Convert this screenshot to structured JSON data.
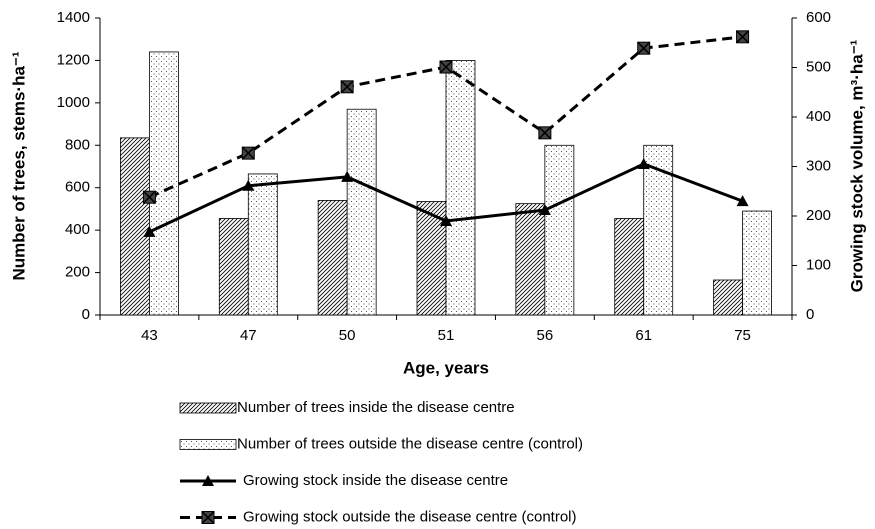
{
  "chart_data": {
    "type": "bar",
    "xlabel": "Age, years",
    "ylabel": "Number of trees, stems·ha⁻¹",
    "y2label": "Growing stock volume, m³·ha⁻¹",
    "categories": [
      "43",
      "47",
      "50",
      "51",
      "56",
      "61",
      "75"
    ],
    "ylim": [
      0,
      1400
    ],
    "yticks": [
      0,
      200,
      400,
      600,
      800,
      1000,
      1200,
      1400
    ],
    "y2lim": [
      0,
      600
    ],
    "y2ticks": [
      0,
      100,
      200,
      300,
      400,
      500,
      600
    ],
    "series": [
      {
        "name": "Number of trees inside the disease centre",
        "type": "bar",
        "pattern": "hatch",
        "color": "#000000",
        "values": [
          835,
          455,
          540,
          535,
          525,
          455,
          165
        ]
      },
      {
        "name": "Number of trees outside the disease centre (control)",
        "type": "bar",
        "pattern": "dots",
        "color": "#000000",
        "values": [
          1240,
          665,
          970,
          1200,
          800,
          800,
          490
        ]
      },
      {
        "name": "Growing stock inside the disease centre",
        "type": "line",
        "axis": "y2",
        "marker": "triangle",
        "dashed": false,
        "color": "#000000",
        "values": [
          168,
          261,
          279,
          190,
          212,
          305,
          230
        ]
      },
      {
        "name": "Growing stock outside the disease centre (control)",
        "type": "line",
        "axis": "y2",
        "marker": "square-x",
        "dashed": true,
        "color": "#000000",
        "values": [
          238,
          327,
          461,
          501,
          368,
          539,
          562
        ]
      }
    ]
  }
}
